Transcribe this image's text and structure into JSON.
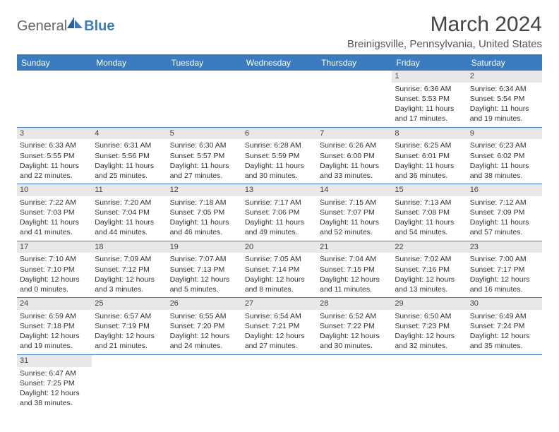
{
  "logo": {
    "general": "General",
    "blue": "Blue"
  },
  "header": {
    "month_title": "March 2024",
    "location": "Breinigsville, Pennsylvania, United States"
  },
  "colors": {
    "header_bar": "#3a7cbf",
    "day_number_bg": "#e8e8e8",
    "text": "#333333",
    "background": "#ffffff"
  },
  "weekdays": [
    "Sunday",
    "Monday",
    "Tuesday",
    "Wednesday",
    "Thursday",
    "Friday",
    "Saturday"
  ],
  "weeks": [
    [
      null,
      null,
      null,
      null,
      null,
      {
        "n": "1",
        "sunrise": "6:36 AM",
        "sunset": "5:53 PM",
        "daylight": "11 hours and 17 minutes."
      },
      {
        "n": "2",
        "sunrise": "6:34 AM",
        "sunset": "5:54 PM",
        "daylight": "11 hours and 19 minutes."
      }
    ],
    [
      {
        "n": "3",
        "sunrise": "6:33 AM",
        "sunset": "5:55 PM",
        "daylight": "11 hours and 22 minutes."
      },
      {
        "n": "4",
        "sunrise": "6:31 AM",
        "sunset": "5:56 PM",
        "daylight": "11 hours and 25 minutes."
      },
      {
        "n": "5",
        "sunrise": "6:30 AM",
        "sunset": "5:57 PM",
        "daylight": "11 hours and 27 minutes."
      },
      {
        "n": "6",
        "sunrise": "6:28 AM",
        "sunset": "5:59 PM",
        "daylight": "11 hours and 30 minutes."
      },
      {
        "n": "7",
        "sunrise": "6:26 AM",
        "sunset": "6:00 PM",
        "daylight": "11 hours and 33 minutes."
      },
      {
        "n": "8",
        "sunrise": "6:25 AM",
        "sunset": "6:01 PM",
        "daylight": "11 hours and 36 minutes."
      },
      {
        "n": "9",
        "sunrise": "6:23 AM",
        "sunset": "6:02 PM",
        "daylight": "11 hours and 38 minutes."
      }
    ],
    [
      {
        "n": "10",
        "sunrise": "7:22 AM",
        "sunset": "7:03 PM",
        "daylight": "11 hours and 41 minutes."
      },
      {
        "n": "11",
        "sunrise": "7:20 AM",
        "sunset": "7:04 PM",
        "daylight": "11 hours and 44 minutes."
      },
      {
        "n": "12",
        "sunrise": "7:18 AM",
        "sunset": "7:05 PM",
        "daylight": "11 hours and 46 minutes."
      },
      {
        "n": "13",
        "sunrise": "7:17 AM",
        "sunset": "7:06 PM",
        "daylight": "11 hours and 49 minutes."
      },
      {
        "n": "14",
        "sunrise": "7:15 AM",
        "sunset": "7:07 PM",
        "daylight": "11 hours and 52 minutes."
      },
      {
        "n": "15",
        "sunrise": "7:13 AM",
        "sunset": "7:08 PM",
        "daylight": "11 hours and 54 minutes."
      },
      {
        "n": "16",
        "sunrise": "7:12 AM",
        "sunset": "7:09 PM",
        "daylight": "11 hours and 57 minutes."
      }
    ],
    [
      {
        "n": "17",
        "sunrise": "7:10 AM",
        "sunset": "7:10 PM",
        "daylight": "12 hours and 0 minutes."
      },
      {
        "n": "18",
        "sunrise": "7:09 AM",
        "sunset": "7:12 PM",
        "daylight": "12 hours and 3 minutes."
      },
      {
        "n": "19",
        "sunrise": "7:07 AM",
        "sunset": "7:13 PM",
        "daylight": "12 hours and 5 minutes."
      },
      {
        "n": "20",
        "sunrise": "7:05 AM",
        "sunset": "7:14 PM",
        "daylight": "12 hours and 8 minutes."
      },
      {
        "n": "21",
        "sunrise": "7:04 AM",
        "sunset": "7:15 PM",
        "daylight": "12 hours and 11 minutes."
      },
      {
        "n": "22",
        "sunrise": "7:02 AM",
        "sunset": "7:16 PM",
        "daylight": "12 hours and 13 minutes."
      },
      {
        "n": "23",
        "sunrise": "7:00 AM",
        "sunset": "7:17 PM",
        "daylight": "12 hours and 16 minutes."
      }
    ],
    [
      {
        "n": "24",
        "sunrise": "6:59 AM",
        "sunset": "7:18 PM",
        "daylight": "12 hours and 19 minutes."
      },
      {
        "n": "25",
        "sunrise": "6:57 AM",
        "sunset": "7:19 PM",
        "daylight": "12 hours and 21 minutes."
      },
      {
        "n": "26",
        "sunrise": "6:55 AM",
        "sunset": "7:20 PM",
        "daylight": "12 hours and 24 minutes."
      },
      {
        "n": "27",
        "sunrise": "6:54 AM",
        "sunset": "7:21 PM",
        "daylight": "12 hours and 27 minutes."
      },
      {
        "n": "28",
        "sunrise": "6:52 AM",
        "sunset": "7:22 PM",
        "daylight": "12 hours and 30 minutes."
      },
      {
        "n": "29",
        "sunrise": "6:50 AM",
        "sunset": "7:23 PM",
        "daylight": "12 hours and 32 minutes."
      },
      {
        "n": "30",
        "sunrise": "6:49 AM",
        "sunset": "7:24 PM",
        "daylight": "12 hours and 35 minutes."
      }
    ],
    [
      {
        "n": "31",
        "sunrise": "6:47 AM",
        "sunset": "7:25 PM",
        "daylight": "12 hours and 38 minutes."
      },
      null,
      null,
      null,
      null,
      null,
      null
    ]
  ],
  "labels": {
    "sunrise_prefix": "Sunrise: ",
    "sunset_prefix": "Sunset: ",
    "daylight_prefix": "Daylight: "
  }
}
